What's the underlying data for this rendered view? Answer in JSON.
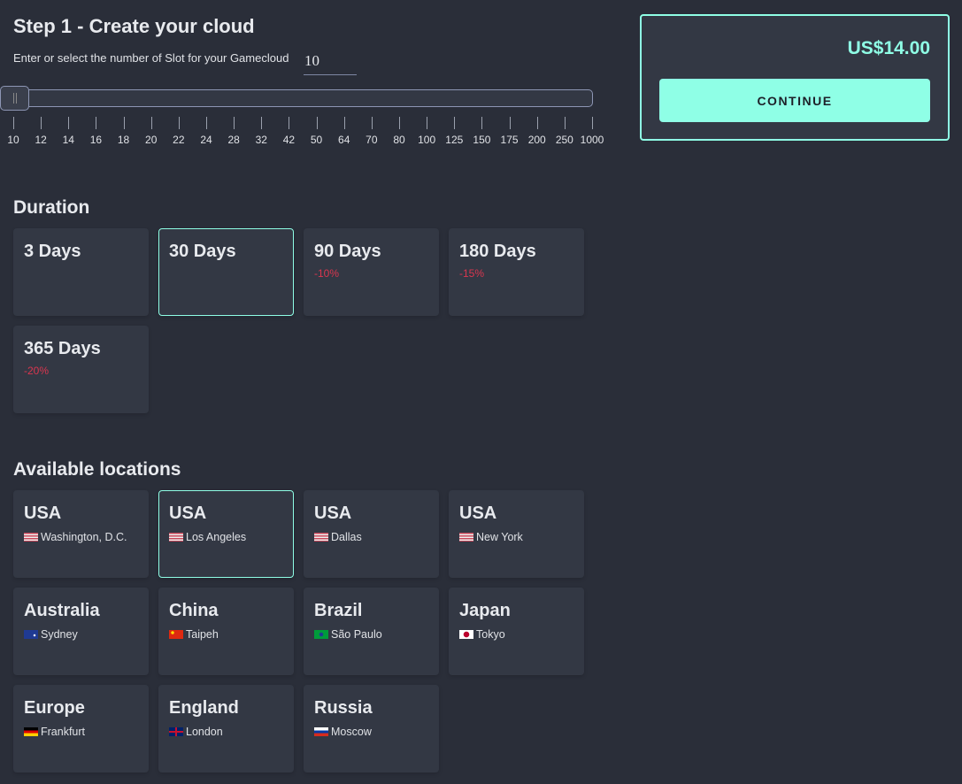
{
  "header": {
    "title": "Step 1 - Create your cloud",
    "slot_label": "Enter or select the number of Slot for your Gamecloud",
    "slot_value": "10"
  },
  "slider": {
    "ticks": [
      "10",
      "12",
      "14",
      "16",
      "18",
      "20",
      "22",
      "24",
      "28",
      "32",
      "42",
      "50",
      "64",
      "70",
      "80",
      "100",
      "125",
      "150",
      "175",
      "200",
      "250",
      "1000"
    ],
    "selected": "10"
  },
  "duration": {
    "title": "Duration",
    "items": [
      {
        "label": "3 Days",
        "discount": "",
        "selected": false
      },
      {
        "label": "30 Days",
        "discount": "",
        "selected": true
      },
      {
        "label": "90 Days",
        "discount": "-10%",
        "selected": false
      },
      {
        "label": "180 Days",
        "discount": "-15%",
        "selected": false
      },
      {
        "label": "365 Days",
        "discount": "-20%",
        "selected": false
      }
    ]
  },
  "locations": {
    "title": "Available locations",
    "items": [
      {
        "region": "USA",
        "city": "Washington, D.C.",
        "flag": "us",
        "selected": false
      },
      {
        "region": "USA",
        "city": "Los Angeles",
        "flag": "us",
        "selected": true
      },
      {
        "region": "USA",
        "city": "Dallas",
        "flag": "us",
        "selected": false
      },
      {
        "region": "USA",
        "city": "New York",
        "flag": "us",
        "selected": false
      },
      {
        "region": "Australia",
        "city": "Sydney",
        "flag": "au",
        "selected": false
      },
      {
        "region": "China",
        "city": "Taipeh",
        "flag": "cn",
        "selected": false
      },
      {
        "region": "Brazil",
        "city": "São Paulo",
        "flag": "br",
        "selected": false
      },
      {
        "region": "Japan",
        "city": "Tokyo",
        "flag": "jp",
        "selected": false
      },
      {
        "region": "Europe",
        "city": "Frankfurt",
        "flag": "de",
        "selected": false
      },
      {
        "region": "England",
        "city": "London",
        "flag": "gb",
        "selected": false
      },
      {
        "region": "Russia",
        "city": "Moscow",
        "flag": "ru",
        "selected": false
      }
    ]
  },
  "summary": {
    "price": "US$14.00",
    "continue_label": "CONTINUE"
  },
  "colors": {
    "accent": "#8fffe6",
    "discount": "#d9364f",
    "background": "#2a2e39",
    "card": "#333844"
  }
}
